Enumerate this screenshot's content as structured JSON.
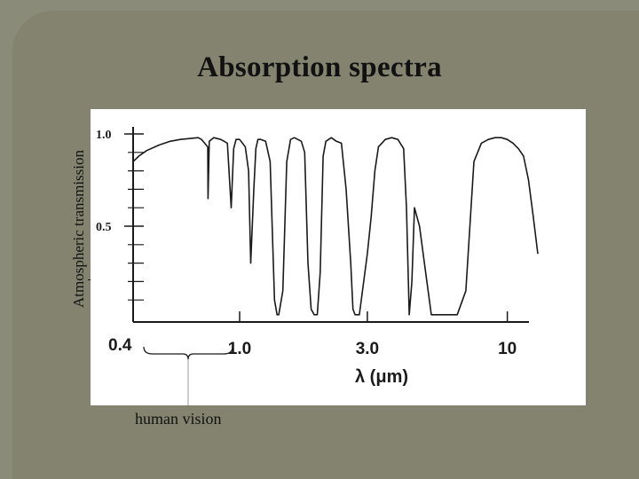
{
  "slide": {
    "title": "Absorption spectra",
    "annotation": "human vision"
  },
  "colors": {
    "background": "#83836f",
    "panel": "#ffffff",
    "ink": "#1a1a1a"
  },
  "chart_data": {
    "type": "line",
    "title": "Absorption spectra",
    "ylabel": "Atmospheric transmission",
    "xlabel": "λ (μm)",
    "xscale": "log",
    "xlim": [
      0.4,
      13
    ],
    "ylim": [
      0,
      1.0
    ],
    "x_ticks": [
      {
        "value": 0.4,
        "label": "0.4"
      },
      {
        "value": 1.0,
        "label": "1.0"
      },
      {
        "value": 3.0,
        "label": "3.0"
      },
      {
        "value": 10,
        "label": "10"
      }
    ],
    "y_ticks": [
      {
        "value": 1.0,
        "label": "1.0"
      },
      {
        "value": 0.5,
        "label": "0.5"
      }
    ],
    "y_minor_ticks": [
      0.1,
      0.2,
      0.3,
      0.4,
      0.6,
      0.7,
      0.8,
      0.9
    ],
    "grid": false,
    "annotations": [
      {
        "text": "human vision",
        "range": [
          0.4,
          0.7
        ]
      }
    ],
    "series": [
      {
        "x": [
          0.4,
          0.42,
          0.45,
          0.5,
          0.55,
          0.6,
          0.65,
          0.7,
          0.72,
          0.74,
          0.76,
          0.762,
          0.77,
          0.8,
          0.85,
          0.9,
          0.93,
          0.95,
          0.97,
          1.0,
          1.05,
          1.08,
          1.1,
          1.13,
          1.15,
          1.17,
          1.2,
          1.25,
          1.3,
          1.35,
          1.38,
          1.4,
          1.45,
          1.5,
          1.55,
          1.6,
          1.65,
          1.7,
          1.75,
          1.8,
          1.85,
          1.9,
          1.95,
          2.0,
          2.05,
          2.1,
          2.2,
          2.3,
          2.4,
          2.5,
          2.6,
          2.65,
          2.7,
          2.8,
          3.0,
          3.1,
          3.2,
          3.3,
          3.4,
          3.5,
          3.7,
          3.9,
          4.1,
          4.2,
          4.3,
          4.4,
          4.5,
          4.7,
          4.9,
          5.2,
          5.6,
          6.0,
          6.5,
          7.0,
          7.5,
          8.0,
          8.5,
          9.0,
          9.5,
          10.0,
          10.5,
          11.0,
          11.5,
          12.0,
          12.5,
          13.0
        ],
        "y": [
          0.85,
          0.88,
          0.91,
          0.94,
          0.96,
          0.97,
          0.975,
          0.98,
          0.97,
          0.95,
          0.93,
          0.65,
          0.96,
          0.98,
          0.97,
          0.95,
          0.6,
          0.92,
          0.97,
          0.97,
          0.93,
          0.8,
          0.3,
          0.7,
          0.92,
          0.97,
          0.97,
          0.96,
          0.85,
          0.1,
          0.02,
          0.02,
          0.15,
          0.85,
          0.97,
          0.98,
          0.97,
          0.96,
          0.9,
          0.3,
          0.05,
          0.02,
          0.02,
          0.25,
          0.88,
          0.96,
          0.98,
          0.96,
          0.95,
          0.7,
          0.3,
          0.05,
          0.02,
          0.02,
          0.35,
          0.55,
          0.8,
          0.93,
          0.95,
          0.97,
          0.98,
          0.97,
          0.92,
          0.6,
          0.02,
          0.2,
          0.6,
          0.5,
          0.3,
          0.02,
          0.02,
          0.02,
          0.02,
          0.15,
          0.85,
          0.95,
          0.97,
          0.98,
          0.98,
          0.97,
          0.95,
          0.92,
          0.88,
          0.75,
          0.55,
          0.35
        ]
      }
    ]
  }
}
